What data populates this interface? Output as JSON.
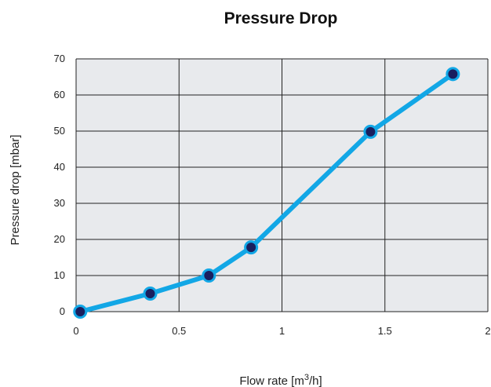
{
  "chart_data": {
    "type": "line",
    "title": "Pressure Drop",
    "xlabel": "Flow rate [m",
    "xlabel_sup": "3",
    "xlabel_suffix": "/h]",
    "ylabel": "Pressure drop [mbar]",
    "xlim": [
      0,
      2
    ],
    "ylim": [
      0,
      70
    ],
    "xticks": [
      0,
      0.5,
      1,
      1.5,
      2
    ],
    "xtick_labels": [
      "0",
      "0.5",
      "1",
      "1.5",
      "2"
    ],
    "yticks": [
      0,
      10,
      20,
      30,
      40,
      50,
      60,
      70
    ],
    "ytick_labels": [
      "0",
      "10",
      "20",
      "30",
      "40",
      "50",
      "60",
      "70"
    ],
    "grid": true,
    "legend": "none",
    "series": [
      {
        "x": [
          0.02,
          0.36,
          0.645,
          0.85,
          1.43,
          1.83
        ],
        "y": [
          0,
          5,
          10,
          17.8,
          49.8,
          65.8
        ]
      }
    ],
    "colors": {
      "line": "#12A7E6",
      "marker_fill": "#1A1F5E",
      "marker_edge": "#12A7E6",
      "plot_background": "#E8EAED",
      "grid": "#222222"
    }
  }
}
